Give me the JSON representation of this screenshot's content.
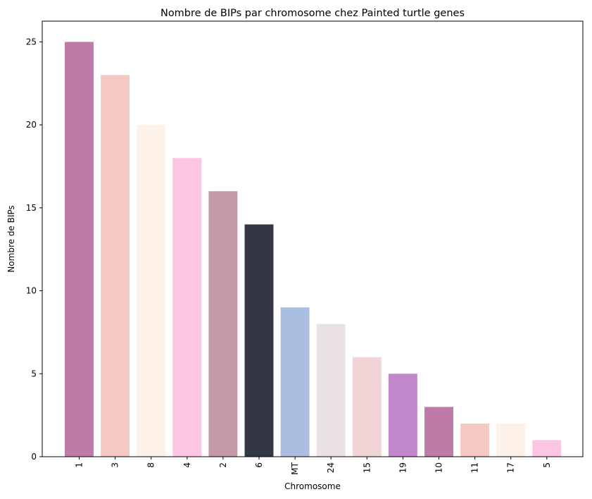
{
  "chart_data": {
    "type": "bar",
    "title": "Nombre de BIPs par chromosome chez Painted turtle genes",
    "xlabel": "Chromosome",
    "ylabel": "Nombre de BIPs",
    "categories": [
      "1",
      "3",
      "8",
      "4",
      "2",
      "6",
      "MT",
      "24",
      "15",
      "19",
      "10",
      "11",
      "17",
      "5"
    ],
    "values": [
      25,
      23,
      20,
      18,
      16,
      14,
      9,
      8,
      6,
      5,
      3,
      2,
      2,
      1
    ],
    "colors": [
      "#bf7ba8",
      "#f4c9c3",
      "#fdf1e8",
      "#fcc5e2",
      "#c59aa6",
      "#333745",
      "#abbde0",
      "#e9e1e6",
      "#f1d5d6",
      "#c088ca",
      "#bf7ba8",
      "#f4c9c3",
      "#fdf1e8",
      "#fcc5e2"
    ],
    "ylim": [
      0,
      26.25
    ],
    "yticks": [
      0,
      5,
      10,
      15,
      20,
      25
    ],
    "grid": false,
    "legend": "none"
  }
}
